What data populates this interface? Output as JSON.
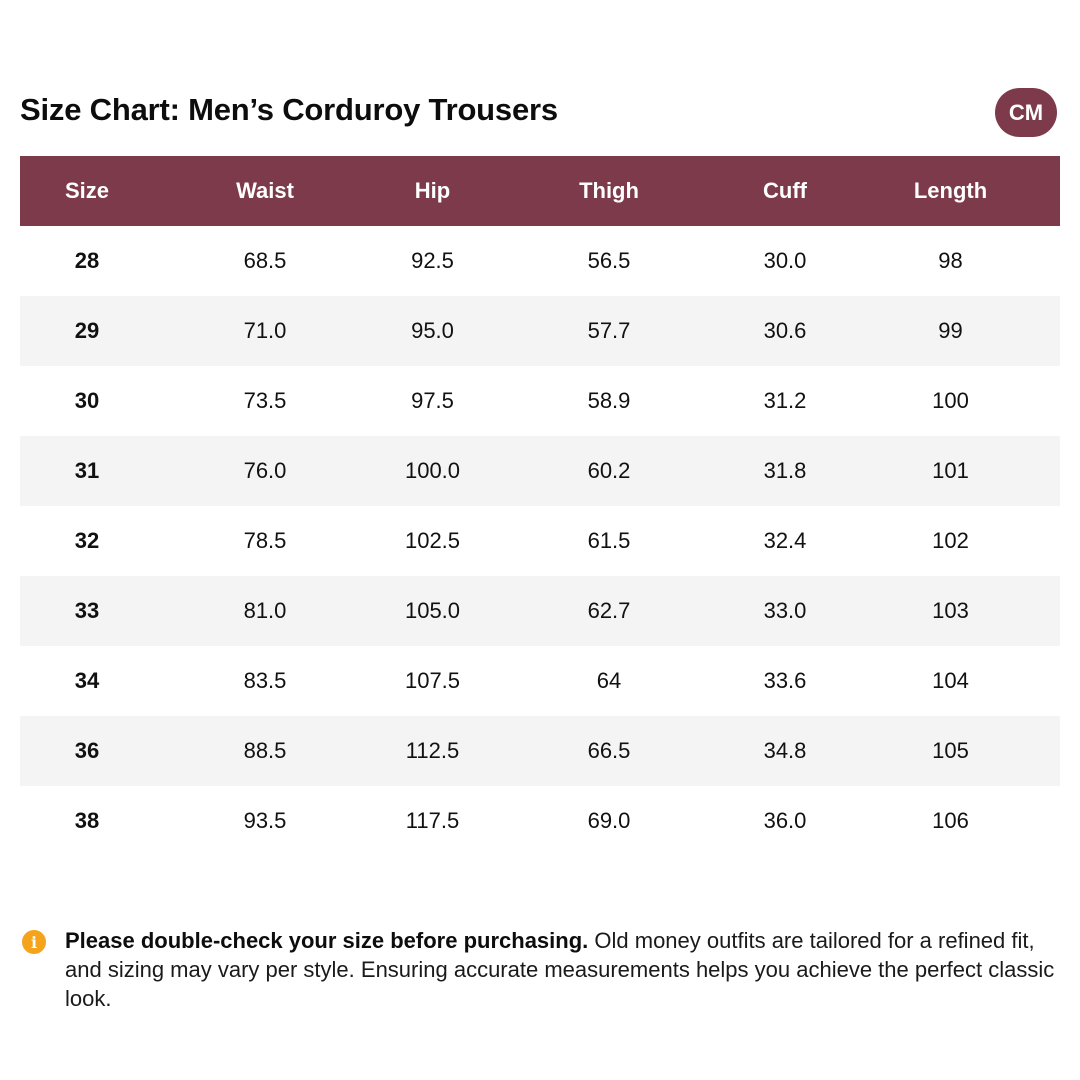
{
  "title": "Size Chart: Men’s Corduroy Trousers",
  "unit_toggle": "CM",
  "colors": {
    "accent": "#7c3a4a",
    "row_alt": "#f4f4f4",
    "info_icon": "#f5a31a"
  },
  "table": {
    "headers": [
      "Size",
      "Waist",
      "Hip",
      "Thigh",
      "Cuff",
      "Length"
    ],
    "rows": [
      [
        "28",
        "68.5",
        "92.5",
        "56.5",
        "30.0",
        "98"
      ],
      [
        "29",
        "71.0",
        "95.0",
        "57.7",
        "30.6",
        "99"
      ],
      [
        "30",
        "73.5",
        "97.5",
        "58.9",
        "31.2",
        "100"
      ],
      [
        "31",
        "76.0",
        "100.0",
        "60.2",
        "31.8",
        "101"
      ],
      [
        "32",
        "78.5",
        "102.5",
        "61.5",
        "32.4",
        "102"
      ],
      [
        "33",
        "81.0",
        "105.0",
        "62.7",
        "33.0",
        "103"
      ],
      [
        "34",
        "83.5",
        "107.5",
        "64",
        "33.6",
        "104"
      ],
      [
        "36",
        "88.5",
        "112.5",
        "66.5",
        "34.8",
        "105"
      ],
      [
        "38",
        "93.5",
        "117.5",
        "69.0",
        "36.0",
        "106"
      ]
    ]
  },
  "notice": {
    "icon": "info-icon",
    "icon_glyph": "i",
    "bold": "Please double-check your size before purchasing.",
    "text": " Old money outfits are tailored for a refined fit, and sizing may vary per style. Ensuring accurate measurements helps you achieve the perfect classic look."
  }
}
